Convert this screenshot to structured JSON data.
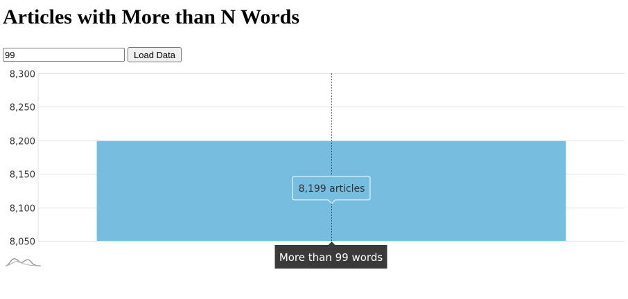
{
  "page": {
    "title": "Articles with More than N Words"
  },
  "controls": {
    "word_input_value": "99",
    "load_button_label": "Load Data"
  },
  "colors": {
    "bar": "#76bde0",
    "grid": "#e0e0e0",
    "axis_tooltip_bg": "#3a3a3a",
    "cursor_line": "#000000"
  },
  "icons": {
    "chart_logo": "amcharts-logo-icon"
  },
  "chart_data": {
    "type": "bar",
    "categories": [
      "More than 99 words"
    ],
    "values": [
      8199
    ],
    "ylim": [
      8050,
      8300
    ],
    "y_ticks": [
      8050,
      8100,
      8150,
      8200,
      8250,
      8300
    ],
    "y_tick_labels": [
      "8,050",
      "8,100",
      "8,150",
      "8,200",
      "8,250",
      "8,300"
    ],
    "grid": true,
    "tooltip": {
      "value_text": "8,199 articles",
      "category_text": "More than 99 words"
    }
  }
}
